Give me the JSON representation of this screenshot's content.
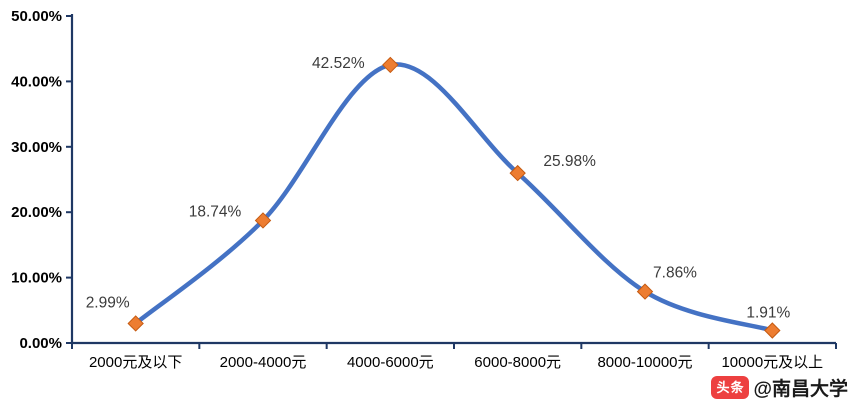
{
  "chart_data": {
    "type": "line",
    "title": "",
    "xlabel": "",
    "ylabel": "",
    "categories": [
      "2000元及以下",
      "2000-4000元",
      "4000-6000元",
      "6000-8000元",
      "8000-10000元",
      "10000元及以上"
    ],
    "values": [
      2.99,
      18.74,
      42.52,
      25.98,
      7.86,
      1.91
    ],
    "data_labels": [
      "2.99%",
      "18.74%",
      "42.52%",
      "25.98%",
      "7.86%",
      "1.91%"
    ],
    "y_tick_labels": [
      "0.00%",
      "10.00%",
      "20.00%",
      "30.00%",
      "40.00%",
      "50.00%"
    ],
    "y_tick_values": [
      0,
      10,
      20,
      30,
      40,
      50
    ],
    "ylim": [
      0,
      50
    ],
    "grid": false,
    "legend_position": "none",
    "line_color": "#4472C4",
    "marker_color": "#ED7D31",
    "marker_edge_color": "#C55A11",
    "axis_color": "#1F3864",
    "tick_label_color": "#000000",
    "data_label_color": "#3b3b3b"
  },
  "watermark": {
    "badge": "头条",
    "account": "@南昌大学",
    "badge_color": "#ED4040"
  }
}
